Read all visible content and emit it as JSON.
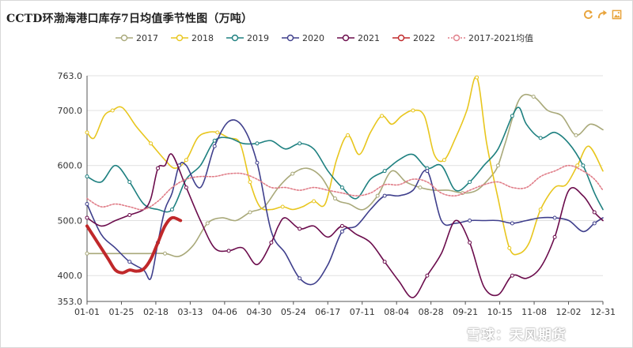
{
  "title": "CCTD环渤海港口库存7日均值季节性图（万吨）",
  "toolbar": {
    "refresh_icon": "refresh-icon",
    "share_icon": "share-icon",
    "save_icon": "save-image-icon"
  },
  "watermark": "雪球：天风期货",
  "chart_data": {
    "type": "line",
    "title": "CCTD环渤海港口库存7日均值季节性图（万吨）",
    "xlabel": "",
    "ylabel": "",
    "ylim": [
      353,
      763
    ],
    "yticks": [
      353,
      400,
      500,
      600,
      700,
      763
    ],
    "ytick_labels": [
      "353.0",
      "400.0",
      "500.0",
      "600.0",
      "700.0",
      "763.0"
    ],
    "xticks": [
      "01-01",
      "01-25",
      "02-18",
      "03-13",
      "04-06",
      "04-30",
      "05-24",
      "06-17",
      "07-11",
      "08-04",
      "08-28",
      "09-21",
      "10-15",
      "11-08",
      "12-02",
      "12-31"
    ],
    "xlim_days": [
      0,
      364
    ],
    "grid": "horizontal",
    "legend_position": "top",
    "series": [
      {
        "name": "2017",
        "color": "#a9a97a",
        "dash": false,
        "x": [
          0,
          20,
          40,
          55,
          65,
          75,
          85,
          95,
          105,
          115,
          125,
          135,
          145,
          155,
          165,
          175,
          185,
          195,
          205,
          215,
          225,
          235,
          245,
          255,
          265,
          275,
          285,
          290,
          295,
          305,
          315,
          325,
          335,
          345,
          355,
          364
        ],
        "y": [
          440,
          440,
          440,
          440,
          435,
          455,
          495,
          505,
          500,
          515,
          525,
          560,
          585,
          595,
          580,
          540,
          530,
          520,
          545,
          590,
          570,
          560,
          555,
          555,
          550,
          555,
          580,
          600,
          640,
          720,
          725,
          700,
          690,
          655,
          675,
          665
        ]
      },
      {
        "name": "2018",
        "color": "#e8c61e",
        "dash": false,
        "x": [
          0,
          5,
          12,
          18,
          25,
          35,
          45,
          55,
          62,
          70,
          78,
          85,
          92,
          100,
          108,
          115,
          122,
          130,
          138,
          145,
          152,
          160,
          168,
          176,
          184,
          192,
          200,
          208,
          215,
          222,
          230,
          238,
          245,
          252,
          260,
          268,
          275,
          282,
          290,
          298,
          305,
          312,
          320,
          330,
          338,
          346,
          354,
          364
        ],
        "y": [
          660,
          650,
          690,
          700,
          705,
          670,
          640,
          610,
          595,
          610,
          650,
          660,
          660,
          650,
          640,
          570,
          525,
          520,
          525,
          520,
          525,
          535,
          530,
          610,
          655,
          620,
          660,
          690,
          675,
          690,
          700,
          690,
          620,
          610,
          650,
          700,
          760,
          640,
          540,
          450,
          440,
          460,
          520,
          560,
          565,
          600,
          635,
          590
        ]
      },
      {
        "name": "2019",
        "color": "#1e8080",
        "dash": false,
        "x": [
          0,
          10,
          20,
          30,
          40,
          50,
          60,
          70,
          80,
          90,
          100,
          110,
          120,
          130,
          140,
          150,
          160,
          170,
          180,
          190,
          200,
          210,
          220,
          230,
          240,
          250,
          260,
          270,
          280,
          290,
          300,
          305,
          310,
          320,
          330,
          340,
          350,
          358,
          364
        ],
        "y": [
          580,
          570,
          600,
          570,
          530,
          520,
          520,
          575,
          600,
          645,
          650,
          640,
          640,
          645,
          630,
          640,
          630,
          590,
          560,
          540,
          575,
          590,
          610,
          620,
          595,
          600,
          555,
          570,
          600,
          630,
          690,
          705,
          675,
          650,
          660,
          640,
          600,
          550,
          520
        ]
      },
      {
        "name": "2020",
        "color": "#3f3f8c",
        "dash": false,
        "x": [
          0,
          10,
          20,
          30,
          40,
          45,
          50,
          55,
          60,
          65,
          70,
          80,
          90,
          100,
          110,
          120,
          130,
          140,
          150,
          160,
          170,
          180,
          190,
          200,
          210,
          220,
          230,
          240,
          250,
          260,
          270,
          280,
          290,
          300,
          310,
          320,
          330,
          340,
          350,
          358,
          364
        ],
        "y": [
          530,
          475,
          450,
          425,
          410,
          395,
          460,
          520,
          550,
          600,
          600,
          560,
          635,
          680,
          670,
          605,
          480,
          440,
          395,
          385,
          420,
          480,
          490,
          520,
          545,
          545,
          555,
          590,
          500,
          495,
          500,
          500,
          500,
          495,
          500,
          505,
          505,
          500,
          480,
          495,
          505
        ]
      },
      {
        "name": "2021",
        "color": "#6b0c4c",
        "dash": false,
        "x": [
          0,
          10,
          20,
          30,
          40,
          45,
          50,
          55,
          60,
          70,
          80,
          90,
          100,
          110,
          120,
          130,
          135,
          140,
          150,
          160,
          170,
          180,
          190,
          200,
          210,
          220,
          230,
          240,
          250,
          260,
          270,
          280,
          290,
          300,
          310,
          320,
          330,
          340,
          350,
          358,
          364
        ],
        "y": [
          505,
          490,
          500,
          510,
          520,
          540,
          595,
          600,
          620,
          560,
          500,
          450,
          445,
          450,
          420,
          460,
          490,
          505,
          485,
          490,
          470,
          490,
          475,
          460,
          425,
          390,
          360,
          400,
          440,
          500,
          460,
          380,
          365,
          400,
          395,
          415,
          470,
          555,
          545,
          515,
          500
        ]
      },
      {
        "name": "2022",
        "color": "#c0282a",
        "dash": false,
        "x": [
          0,
          5,
          10,
          15,
          20,
          25,
          30,
          35,
          40,
          45,
          50,
          55,
          60,
          66
        ],
        "y": [
          490,
          470,
          450,
          430,
          410,
          405,
          410,
          408,
          412,
          430,
          460,
          490,
          505,
          500
        ]
      },
      {
        "name": "2017-2021均值",
        "color": "#e07d88",
        "dash": true,
        "x": [
          0,
          10,
          20,
          30,
          40,
          50,
          60,
          70,
          80,
          90,
          100,
          110,
          120,
          130,
          140,
          150,
          160,
          170,
          180,
          190,
          200,
          210,
          220,
          230,
          240,
          250,
          260,
          270,
          280,
          290,
          300,
          310,
          320,
          330,
          340,
          350,
          358,
          364
        ],
        "y": [
          540,
          525,
          530,
          525,
          520,
          535,
          560,
          575,
          580,
          580,
          585,
          585,
          575,
          560,
          560,
          555,
          560,
          555,
          550,
          545,
          550,
          565,
          565,
          575,
          570,
          550,
          545,
          555,
          565,
          570,
          560,
          560,
          580,
          590,
          600,
          590,
          575,
          555
        ]
      }
    ]
  }
}
